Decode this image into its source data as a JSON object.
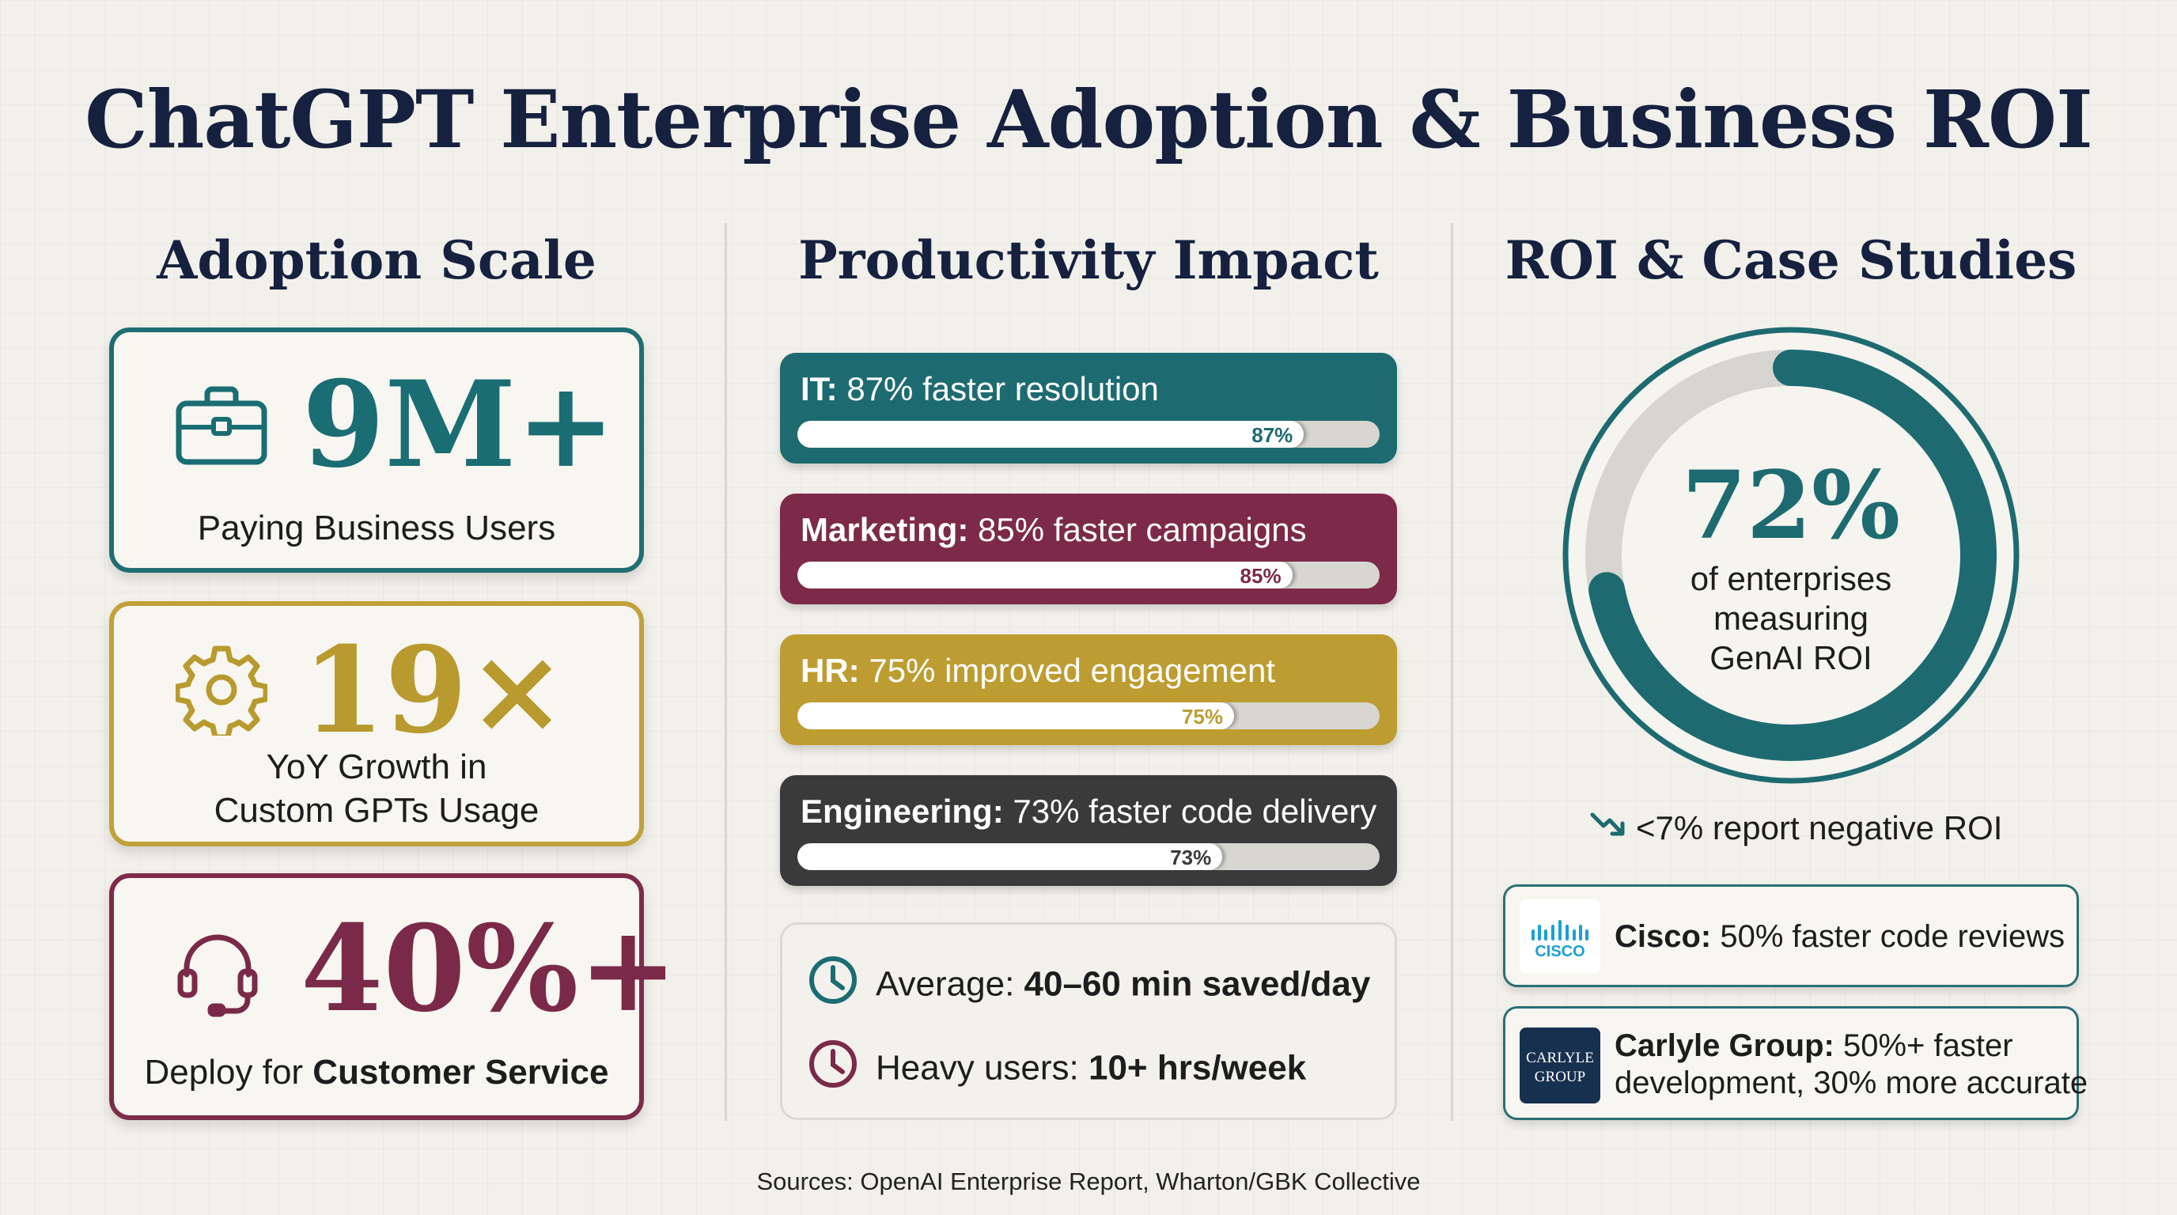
{
  "title": "ChatGPT Enterprise Adoption & Business ROI",
  "columns": {
    "adoption": "Adoption Scale",
    "productivity": "Productivity Impact",
    "roi": "ROI & Case Studies"
  },
  "stats": [
    {
      "value": "9M+",
      "label": "Paying Business Users",
      "icon": "briefcase-icon",
      "color": "#1a6d73"
    },
    {
      "value": "19×",
      "label_line1": "YoY Growth in",
      "label_line2": "Custom GPTs Usage",
      "icon": "gear-icon",
      "color": "#b99a2e"
    },
    {
      "value": "40%+",
      "label_prefix": "Deploy for ",
      "label_bold": "Customer Service",
      "icon": "headset-icon",
      "color": "#7a2a48"
    }
  ],
  "chart_data": {
    "type": "bar",
    "title": "Productivity Impact",
    "categories": [
      "IT",
      "Marketing",
      "HR",
      "Engineering"
    ],
    "values": [
      87,
      85,
      75,
      73
    ],
    "descriptions": [
      "87% faster resolution",
      "85% faster campaigns",
      "75% improved engagement",
      "73% faster code delivery"
    ],
    "value_labels": [
      "87%",
      "85%",
      "75%",
      "73%"
    ],
    "colors": [
      "#1d6b71",
      "#7c2a48",
      "#bd9c31",
      "#3a3a3a"
    ],
    "ylim": [
      0,
      100
    ]
  },
  "time_saved": {
    "average_label": "Average: ",
    "average_value": "40–60 min saved/day",
    "heavy_label": "Heavy users: ",
    "heavy_value": "10+ hrs/week"
  },
  "roi": {
    "percent": 72,
    "value": "72%",
    "line1": "of enterprises",
    "line2": "measuring",
    "line3": "GenAI ROI",
    "negative": "<7% report negative ROI",
    "ring_color": "#1d6b71"
  },
  "cases": [
    {
      "logo_text": "CISCO",
      "name": "Cisco:",
      "desc": " 50% faster code reviews"
    },
    {
      "logo_line1": "CARLYLE",
      "logo_line2": "GROUP",
      "name": "Carlyle Group:",
      "desc_line1": " 50%+ faster",
      "desc_line2": "development, 30% more accurate"
    }
  ],
  "sources": "Sources: OpenAI Enterprise Report, Wharton/GBK Collective"
}
